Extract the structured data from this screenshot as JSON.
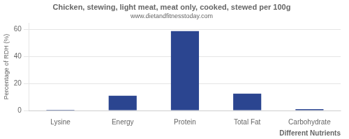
{
  "chart_data": {
    "type": "bar",
    "title": "Chicken, stewing, light meat, meat only, cooked, stewed per 100g",
    "subtitle": "www.dietandfitnesstoday.com",
    "xlabel": "Different Nutrients",
    "ylabel": "Percentage of RDH (%)",
    "categories": [
      "Lysine",
      "Energy",
      "Protein",
      "Total Fat",
      "Carbohydrate"
    ],
    "values": [
      0.5,
      11,
      59,
      12.5,
      1.0
    ],
    "color": "#2b4590",
    "ylim": [
      0,
      65
    ],
    "yticks": [
      0,
      20,
      40,
      60
    ],
    "grid": true
  }
}
